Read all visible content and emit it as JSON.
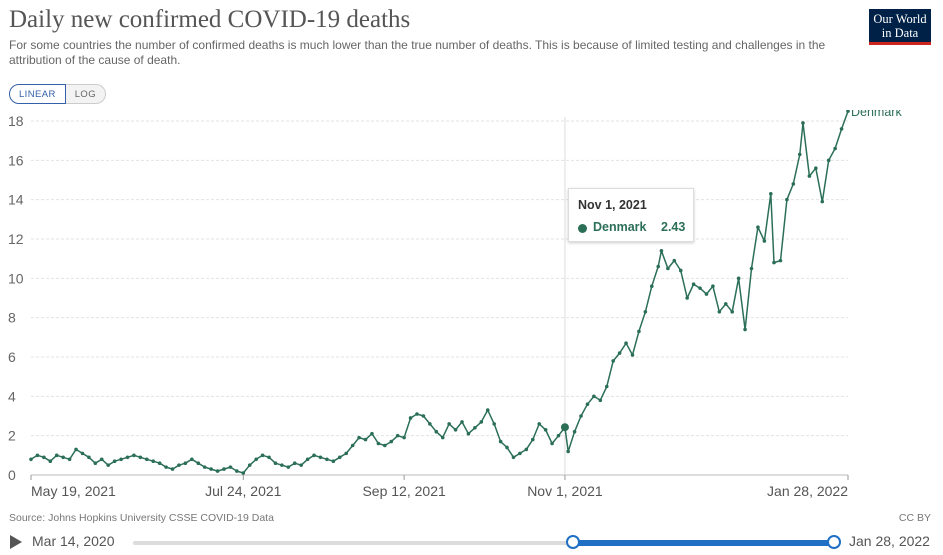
{
  "header": {
    "title": "Daily new confirmed COVID-19 deaths",
    "subtitle": "For some countries the number of confirmed deaths is much lower than the true number of deaths. This is because of limited testing and challenges in the attribution of the cause of death.",
    "logo_line1": "Our World",
    "logo_line2": "in Data"
  },
  "scale_toggle": {
    "linear_label": "LINEAR",
    "log_label": "LOG",
    "active": "LINEAR"
  },
  "footer": {
    "source": "Source: Johns Hopkins University CSSE COVID-19 Data",
    "license": "CC BY"
  },
  "timeline": {
    "start_label": "Mar 14, 2020",
    "end_label": "Jan 28, 2022",
    "selection_start_fraction": 0.628,
    "selection_end_fraction": 1.0
  },
  "tooltip": {
    "date": "Nov 1, 2021",
    "series": "Denmark",
    "value": "2.43"
  },
  "colors": {
    "series": "#2c6f57",
    "accent": "#1f6fc5",
    "gridline": "#e3e3e3"
  },
  "chart_data": {
    "type": "line",
    "title": "Daily new confirmed COVID-19 deaths",
    "x_start_date": "2021-05-19",
    "x_end_date": "2022-01-28",
    "ylim": [
      0,
      18
    ],
    "y_ticks": [
      "0",
      "2",
      "4",
      "6",
      "8",
      "10",
      "12",
      "14",
      "16",
      "18"
    ],
    "x_ticks": [
      {
        "date": "2021-05-19",
        "label": "May 19, 2021"
      },
      {
        "date": "2021-07-24",
        "label": "Jul 24, 2021"
      },
      {
        "date": "2021-09-12",
        "label": "Sep 12, 2021"
      },
      {
        "date": "2021-11-01",
        "label": "Nov 1, 2021"
      },
      {
        "date": "2022-01-28",
        "label": "Jan 28, 2022"
      }
    ],
    "hover_date": "2021-11-01",
    "series": [
      {
        "name": "Denmark",
        "points": [
          [
            "2021-05-19",
            0.8
          ],
          [
            "2021-05-21",
            1.0
          ],
          [
            "2021-05-23",
            0.9
          ],
          [
            "2021-05-25",
            0.7
          ],
          [
            "2021-05-27",
            1.0
          ],
          [
            "2021-05-29",
            0.9
          ],
          [
            "2021-05-31",
            0.8
          ],
          [
            "2021-06-02",
            1.3
          ],
          [
            "2021-06-04",
            1.1
          ],
          [
            "2021-06-06",
            0.9
          ],
          [
            "2021-06-08",
            0.6
          ],
          [
            "2021-06-10",
            0.8
          ],
          [
            "2021-06-12",
            0.5
          ],
          [
            "2021-06-14",
            0.7
          ],
          [
            "2021-06-16",
            0.8
          ],
          [
            "2021-06-18",
            0.9
          ],
          [
            "2021-06-20",
            1.0
          ],
          [
            "2021-06-22",
            0.9
          ],
          [
            "2021-06-24",
            0.8
          ],
          [
            "2021-06-26",
            0.7
          ],
          [
            "2021-06-28",
            0.6
          ],
          [
            "2021-06-30",
            0.4
          ],
          [
            "2021-07-02",
            0.3
          ],
          [
            "2021-07-04",
            0.5
          ],
          [
            "2021-07-06",
            0.6
          ],
          [
            "2021-07-08",
            0.8
          ],
          [
            "2021-07-10",
            0.6
          ],
          [
            "2021-07-12",
            0.4
          ],
          [
            "2021-07-14",
            0.3
          ],
          [
            "2021-07-16",
            0.2
          ],
          [
            "2021-07-18",
            0.3
          ],
          [
            "2021-07-20",
            0.4
          ],
          [
            "2021-07-22",
            0.2
          ],
          [
            "2021-07-24",
            0.1
          ],
          [
            "2021-07-26",
            0.5
          ],
          [
            "2021-07-28",
            0.8
          ],
          [
            "2021-07-30",
            1.0
          ],
          [
            "2021-08-01",
            0.9
          ],
          [
            "2021-08-03",
            0.6
          ],
          [
            "2021-08-05",
            0.5
          ],
          [
            "2021-08-07",
            0.4
          ],
          [
            "2021-08-09",
            0.6
          ],
          [
            "2021-08-11",
            0.5
          ],
          [
            "2021-08-13",
            0.8
          ],
          [
            "2021-08-15",
            1.0
          ],
          [
            "2021-08-17",
            0.9
          ],
          [
            "2021-08-19",
            0.8
          ],
          [
            "2021-08-21",
            0.7
          ],
          [
            "2021-08-23",
            0.9
          ],
          [
            "2021-08-25",
            1.1
          ],
          [
            "2021-08-27",
            1.5
          ],
          [
            "2021-08-29",
            1.9
          ],
          [
            "2021-08-31",
            1.8
          ],
          [
            "2021-09-02",
            2.1
          ],
          [
            "2021-09-04",
            1.6
          ],
          [
            "2021-09-06",
            1.5
          ],
          [
            "2021-09-08",
            1.7
          ],
          [
            "2021-09-10",
            2.0
          ],
          [
            "2021-09-12",
            1.9
          ],
          [
            "2021-09-14",
            2.9
          ],
          [
            "2021-09-16",
            3.1
          ],
          [
            "2021-09-18",
            3.0
          ],
          [
            "2021-09-20",
            2.6
          ],
          [
            "2021-09-22",
            2.2
          ],
          [
            "2021-09-24",
            1.9
          ],
          [
            "2021-09-26",
            2.6
          ],
          [
            "2021-09-28",
            2.3
          ],
          [
            "2021-09-30",
            2.7
          ],
          [
            "2021-10-02",
            2.1
          ],
          [
            "2021-10-04",
            2.4
          ],
          [
            "2021-10-06",
            2.7
          ],
          [
            "2021-10-08",
            3.3
          ],
          [
            "2021-10-10",
            2.6
          ],
          [
            "2021-10-12",
            1.7
          ],
          [
            "2021-10-14",
            1.4
          ],
          [
            "2021-10-16",
            0.9
          ],
          [
            "2021-10-18",
            1.1
          ],
          [
            "2021-10-20",
            1.3
          ],
          [
            "2021-10-22",
            1.8
          ],
          [
            "2021-10-24",
            2.6
          ],
          [
            "2021-10-26",
            2.3
          ],
          [
            "2021-10-28",
            1.6
          ],
          [
            "2021-10-30",
            2.0
          ],
          [
            "2021-11-01",
            2.43
          ],
          [
            "2021-11-02",
            1.2
          ],
          [
            "2021-11-04",
            2.2
          ],
          [
            "2021-11-06",
            3.0
          ],
          [
            "2021-11-08",
            3.6
          ],
          [
            "2021-11-10",
            4.0
          ],
          [
            "2021-11-12",
            3.8
          ],
          [
            "2021-11-14",
            4.5
          ],
          [
            "2021-11-16",
            5.8
          ],
          [
            "2021-11-18",
            6.2
          ],
          [
            "2021-11-20",
            6.7
          ],
          [
            "2021-11-22",
            6.1
          ],
          [
            "2021-11-24",
            7.3
          ],
          [
            "2021-11-26",
            8.3
          ],
          [
            "2021-11-28",
            9.6
          ],
          [
            "2021-11-30",
            10.6
          ],
          [
            "2021-12-01",
            11.4
          ],
          [
            "2021-12-03",
            10.5
          ],
          [
            "2021-12-05",
            10.9
          ],
          [
            "2021-12-07",
            10.4
          ],
          [
            "2021-12-09",
            9.0
          ],
          [
            "2021-12-11",
            9.7
          ],
          [
            "2021-12-13",
            9.5
          ],
          [
            "2021-12-15",
            9.2
          ],
          [
            "2021-12-17",
            9.6
          ],
          [
            "2021-12-19",
            8.3
          ],
          [
            "2021-12-21",
            8.7
          ],
          [
            "2021-12-23",
            8.3
          ],
          [
            "2021-12-25",
            10.0
          ],
          [
            "2021-12-27",
            7.4
          ],
          [
            "2021-12-29",
            10.5
          ],
          [
            "2021-12-31",
            12.6
          ],
          [
            "2022-01-02",
            11.9
          ],
          [
            "2022-01-04",
            14.3
          ],
          [
            "2022-01-05",
            10.8
          ],
          [
            "2022-01-07",
            10.9
          ],
          [
            "2022-01-09",
            14.0
          ],
          [
            "2022-01-11",
            14.8
          ],
          [
            "2022-01-13",
            16.3
          ],
          [
            "2022-01-14",
            17.9
          ],
          [
            "2022-01-16",
            15.2
          ],
          [
            "2022-01-18",
            15.6
          ],
          [
            "2022-01-20",
            13.9
          ],
          [
            "2022-01-22",
            16.0
          ],
          [
            "2022-01-24",
            16.6
          ],
          [
            "2022-01-26",
            17.6
          ],
          [
            "2022-01-28",
            18.5
          ]
        ]
      }
    ]
  }
}
